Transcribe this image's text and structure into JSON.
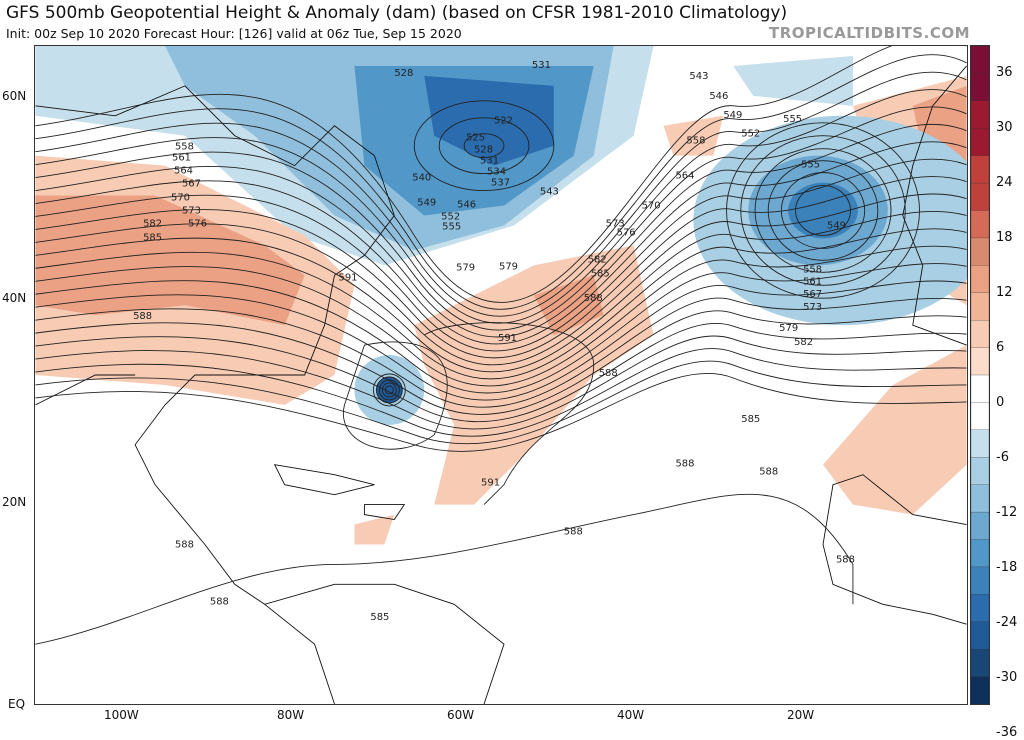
{
  "header": {
    "title": "GFS 500mb Geopotential Height & Anomaly (dam) (based on CFSR 1981-2010 Climatology)",
    "subtitle": "Init: 00z Sep 10 2020   Forecast Hour: [126]   valid at 06z Tue, Sep 15 2020",
    "brand": "TROPICALTIDBITS.COM"
  },
  "axes": {
    "lat_labels": [
      "60N",
      "40N",
      "20N",
      "EQ"
    ],
    "lon_labels": [
      "100W",
      "80W",
      "60W",
      "40W",
      "20W"
    ],
    "lon_range": [
      -110,
      0
    ],
    "lat_range": [
      0,
      65
    ]
  },
  "colorbar": {
    "labels": [
      "36",
      "30",
      "24",
      "18",
      "12",
      "6",
      "0",
      "-6",
      "-12",
      "-18",
      "-24",
      "-30",
      "-36"
    ],
    "colors": [
      "#7a0e35",
      "#7a0e35",
      "#9c1a30",
      "#9c1a30",
      "#c0403b",
      "#c0403b",
      "#d56a58",
      "#d88a6e",
      "#eba184",
      "#f2b497",
      "#f8cbb4",
      "#fcdccb",
      "#ffffff",
      "#ffffff",
      "#c5dfec",
      "#a8cfe3",
      "#8fbfdc",
      "#6da8d1",
      "#5197c7",
      "#3b82bb",
      "#2b6cae",
      "#205a97",
      "#1a4676",
      "#10305c"
    ]
  },
  "contour_labels": [
    "531",
    "528",
    "522",
    "525",
    "528",
    "531",
    "534",
    "537",
    "540",
    "543",
    "546",
    "549",
    "552",
    "555",
    "558",
    "561",
    "564",
    "567",
    "570",
    "573",
    "576",
    "579",
    "582",
    "585",
    "588",
    "591",
    "543",
    "546",
    "549",
    "552",
    "555",
    "558",
    "564",
    "570",
    "573",
    "576",
    "579",
    "582",
    "585",
    "588",
    "591",
    "555",
    "549",
    "558",
    "561",
    "567",
    "573",
    "579",
    "582",
    "585",
    "588",
    "591",
    "588",
    "588",
    "588",
    "588",
    "588",
    "588",
    "585"
  ],
  "colors": {
    "positive": "#f8cbb4",
    "negative": "#8fbfdc",
    "strong_negative": "#2b6cae"
  }
}
